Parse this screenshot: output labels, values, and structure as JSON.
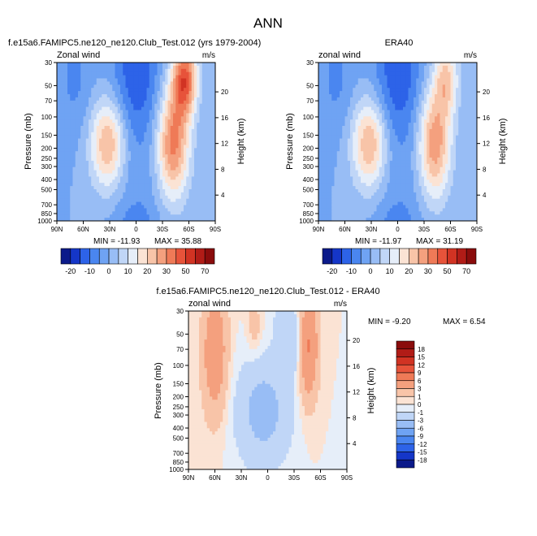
{
  "main_title": "ANN",
  "colors": {
    "abs_scale": [
      "#0b1a8a",
      "#1536c8",
      "#2d63e8",
      "#4a86f0",
      "#6fa3f3",
      "#98bdf5",
      "#c0d6f7",
      "#e6eef9",
      "#fbe3d4",
      "#f8c4a8",
      "#f4a07e",
      "#ef7a57",
      "#e7533a",
      "#d13323",
      "#b11c17",
      "#8a0c0c"
    ],
    "diff_scale": [
      "#0b1a8a",
      "#1536c8",
      "#2d63e8",
      "#4a86f0",
      "#6fa3f3",
      "#98bdf5",
      "#c0d6f7",
      "#e6eef9",
      "#fbe3d4",
      "#f8c4a8",
      "#f4a07e",
      "#ef7a57",
      "#e7533a",
      "#d13323",
      "#b11c17",
      "#8a0c0c"
    ]
  },
  "chart_data": [
    {
      "type": "heatmap",
      "title": "f.e15a6.FAMIPC5.ne120_ne120.Club_Test.012 (yrs 1979-2004)",
      "left_label": "Zonal wind",
      "right_label": "m/s",
      "ylabel": "Pressure (mb)",
      "ylabel_right": "Height (km)",
      "x_ticks": [
        "90N",
        "60N",
        "30N",
        "0",
        "30S",
        "60S",
        "90S"
      ],
      "y_ticks": [
        "30",
        "50",
        "70",
        "100",
        "150",
        "200",
        "250",
        "300",
        "400",
        "500",
        "700",
        "850",
        "1000"
      ],
      "y_ticks_right": [
        "20",
        "16",
        "12",
        "8",
        "4"
      ],
      "min_label": "MIN = -11.93",
      "max_label": "MAX = 35.88",
      "ylim": [
        1000,
        30
      ],
      "xlim": [
        90,
        -90
      ],
      "features": [
        {
          "lat": 30,
          "p": 200,
          "value": 25
        },
        {
          "lat": -45,
          "p": 200,
          "value": 30
        },
        {
          "lat": -45,
          "p": 50,
          "value": 35
        },
        {
          "lat": 0,
          "p": 50,
          "value": -12
        }
      ]
    },
    {
      "type": "heatmap",
      "title": "ERA40",
      "left_label": "zonal wind",
      "right_label": "m/s",
      "ylabel": "Pressure (mb)",
      "ylabel_right": "Height (km)",
      "x_ticks": [
        "90N",
        "60N",
        "30N",
        "0",
        "30S",
        "60S",
        "90S"
      ],
      "y_ticks": [
        "30",
        "50",
        "70",
        "100",
        "150",
        "200",
        "250",
        "300",
        "400",
        "500",
        "700",
        "850",
        "1000"
      ],
      "y_ticks_right": [
        "20",
        "16",
        "12",
        "8",
        "4"
      ],
      "min_label": "MIN = -11.97",
      "max_label": "MAX = 31.19",
      "ylim": [
        1000,
        30
      ],
      "xlim": [
        90,
        -90
      ],
      "features": [
        {
          "lat": 30,
          "p": 200,
          "value": 25
        },
        {
          "lat": -45,
          "p": 200,
          "value": 28
        },
        {
          "lat": 0,
          "p": 50,
          "value": -12
        }
      ]
    },
    {
      "type": "heatmap",
      "title": "f.e15a6.FAMIPC5.ne120_ne120.Club_Test.012 - ERA40",
      "left_label": "zonal wind",
      "right_label": "m/s",
      "ylabel": "Pressure (mb)",
      "ylabel_right": "Height (km)",
      "x_ticks": [
        "90N",
        "60N",
        "30N",
        "0",
        "30S",
        "60S",
        "90S"
      ],
      "y_ticks": [
        "30",
        "50",
        "70",
        "100",
        "150",
        "200",
        "250",
        "300",
        "400",
        "500",
        "700",
        "850",
        "1000"
      ],
      "y_ticks_right": [
        "20",
        "16",
        "12",
        "8",
        "4"
      ],
      "min_label": "MIN =  -9.20",
      "max_label": "MAX =   6.54",
      "ylim": [
        1000,
        30
      ],
      "xlim": [
        90,
        -90
      ],
      "features": [
        {
          "lat": 60,
          "p": 100,
          "value": 5
        },
        {
          "lat": -45,
          "p": 80,
          "value": 6
        },
        {
          "lat": 0,
          "p": 400,
          "value": -4
        }
      ]
    }
  ],
  "colorbar_abs": {
    "labels": [
      "-20",
      "-10",
      "0",
      "10",
      "20",
      "30",
      "50",
      "70"
    ]
  },
  "colorbar_diff": {
    "labels": [
      "18",
      "15",
      "12",
      "9",
      "6",
      "3",
      "1",
      "0",
      "-1",
      "-3",
      "-6",
      "-9",
      "-12",
      "-15",
      "-18"
    ]
  }
}
